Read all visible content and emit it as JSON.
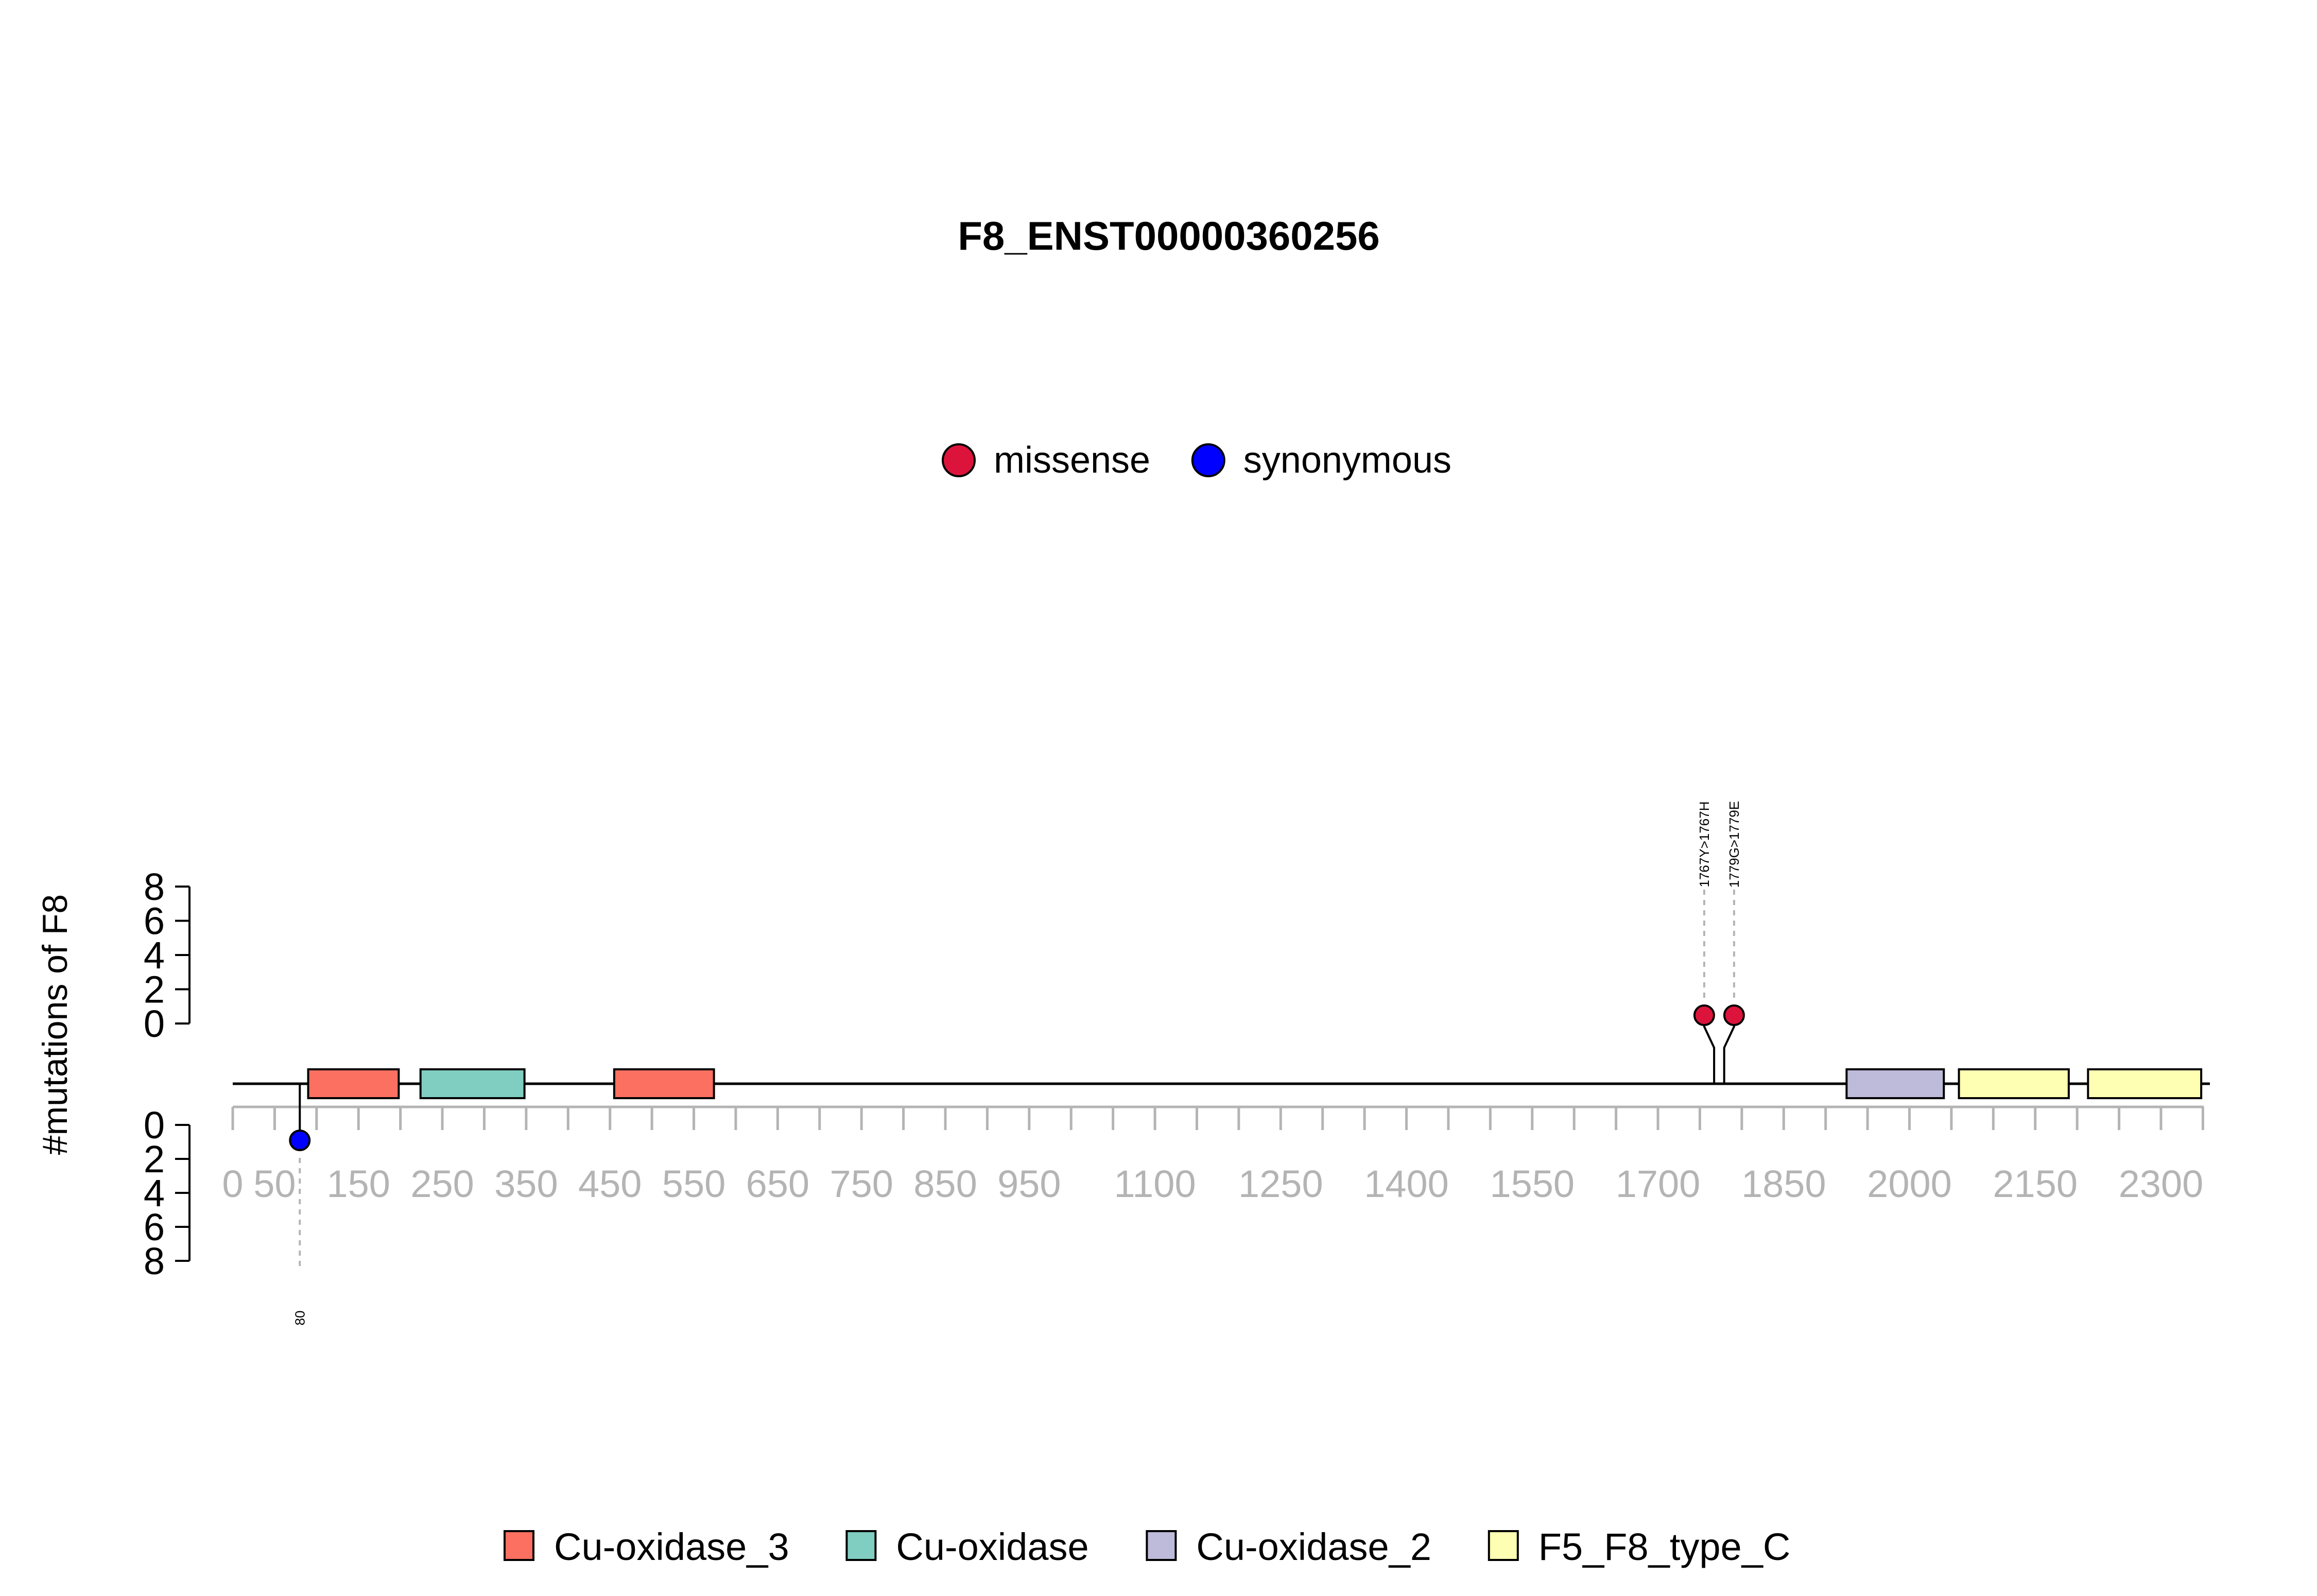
{
  "chart_data": {
    "type": "lollipop",
    "title": "F8_ENST00000360256",
    "ylabel": "#mutations of F8",
    "xlim": [
      0,
      2351
    ],
    "x_ticks": [
      0,
      50,
      150,
      250,
      350,
      450,
      550,
      650,
      750,
      850,
      950,
      1100,
      1250,
      1400,
      1550,
      1700,
      1850,
      2000,
      2150,
      2300
    ],
    "y_ticks": [
      "8",
      "6",
      "4",
      "2",
      "0"
    ],
    "ylim": [
      0,
      8
    ],
    "mutation_legend": [
      {
        "label": "missense",
        "color": "#DC143C"
      },
      {
        "label": "synonymous",
        "color": "#0000FF"
      }
    ],
    "mutations": [
      {
        "position": 1767,
        "label": "1767Y>1767H",
        "type": "missense",
        "strand": "top",
        "count": 1,
        "color": "#DC143C"
      },
      {
        "position": 1779,
        "label": "1779G>1779E",
        "type": "missense",
        "strand": "top",
        "count": 1,
        "color": "#DC143C"
      },
      {
        "position": 80,
        "label": "80",
        "type": "synonymous",
        "strand": "bottom",
        "count": 1,
        "color": "#0000FF"
      }
    ],
    "domains": [
      {
        "name": "Cu-oxidase_3",
        "start": 90,
        "end": 198,
        "color": "#FB7060"
      },
      {
        "name": "Cu-oxidase",
        "start": 224,
        "end": 348,
        "color": "#80CDC1"
      },
      {
        "name": "Cu-oxidase_3",
        "start": 455,
        "end": 574,
        "color": "#FB7060"
      },
      {
        "name": "Cu-oxidase_2",
        "start": 1925,
        "end": 2041,
        "color": "#BEBADA"
      },
      {
        "name": "F5_F8_type_C",
        "start": 2059,
        "end": 2190,
        "color": "#FFFFB3"
      },
      {
        "name": "F5_F8_type_C",
        "start": 2213,
        "end": 2348,
        "color": "#FFFFB3"
      }
    ],
    "domain_legend": [
      {
        "label": "Cu-oxidase_3",
        "color": "#FB7060"
      },
      {
        "label": "Cu-oxidase",
        "color": "#80CDC1"
      },
      {
        "label": "Cu-oxidase_2",
        "color": "#BEBADA"
      },
      {
        "label": "F5_F8_type_C",
        "color": "#FFFFB3"
      }
    ]
  }
}
